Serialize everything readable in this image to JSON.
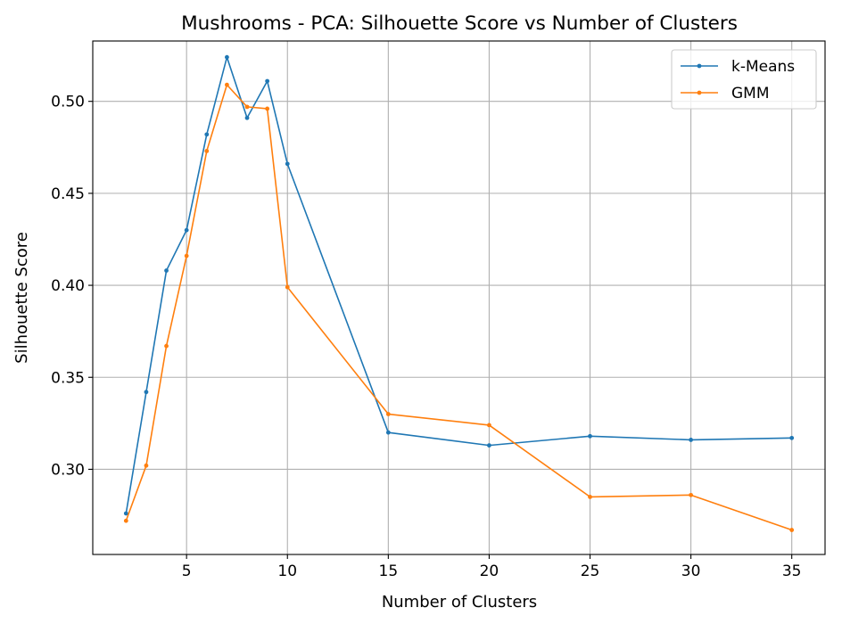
{
  "chart_data": {
    "type": "line",
    "title": "Mushrooms - PCA: Silhouette Score vs Number of Clusters",
    "xlabel": "Number of Clusters",
    "ylabel": "Silhouette Score",
    "xlim": [
      0.35,
      36.65
    ],
    "ylim": [
      0.2537,
      0.5328
    ],
    "xticks": [
      5,
      10,
      15,
      20,
      25,
      30,
      35
    ],
    "yticks": [
      0.3,
      0.35,
      0.4,
      0.45,
      0.5
    ],
    "xtick_labels": [
      "5",
      "10",
      "15",
      "20",
      "25",
      "30",
      "35"
    ],
    "ytick_labels": [
      "0.30",
      "0.35",
      "0.40",
      "0.45",
      "0.50"
    ],
    "grid": true,
    "legend_position": "top-right",
    "x": [
      2,
      3,
      4,
      5,
      6,
      7,
      8,
      9,
      10,
      15,
      20,
      25,
      30,
      35
    ],
    "series": [
      {
        "name": "k-Means",
        "color": "#1f77b4",
        "values": [
          0.276,
          0.342,
          0.408,
          0.43,
          0.482,
          0.524,
          0.491,
          0.511,
          0.466,
          0.32,
          0.313,
          0.318,
          0.316,
          0.317
        ]
      },
      {
        "name": "GMM",
        "color": "#ff7f0e",
        "values": [
          0.272,
          0.302,
          0.367,
          0.416,
          0.473,
          0.509,
          0.497,
          0.496,
          0.399,
          0.33,
          0.324,
          0.285,
          0.286,
          0.267
        ]
      }
    ]
  }
}
